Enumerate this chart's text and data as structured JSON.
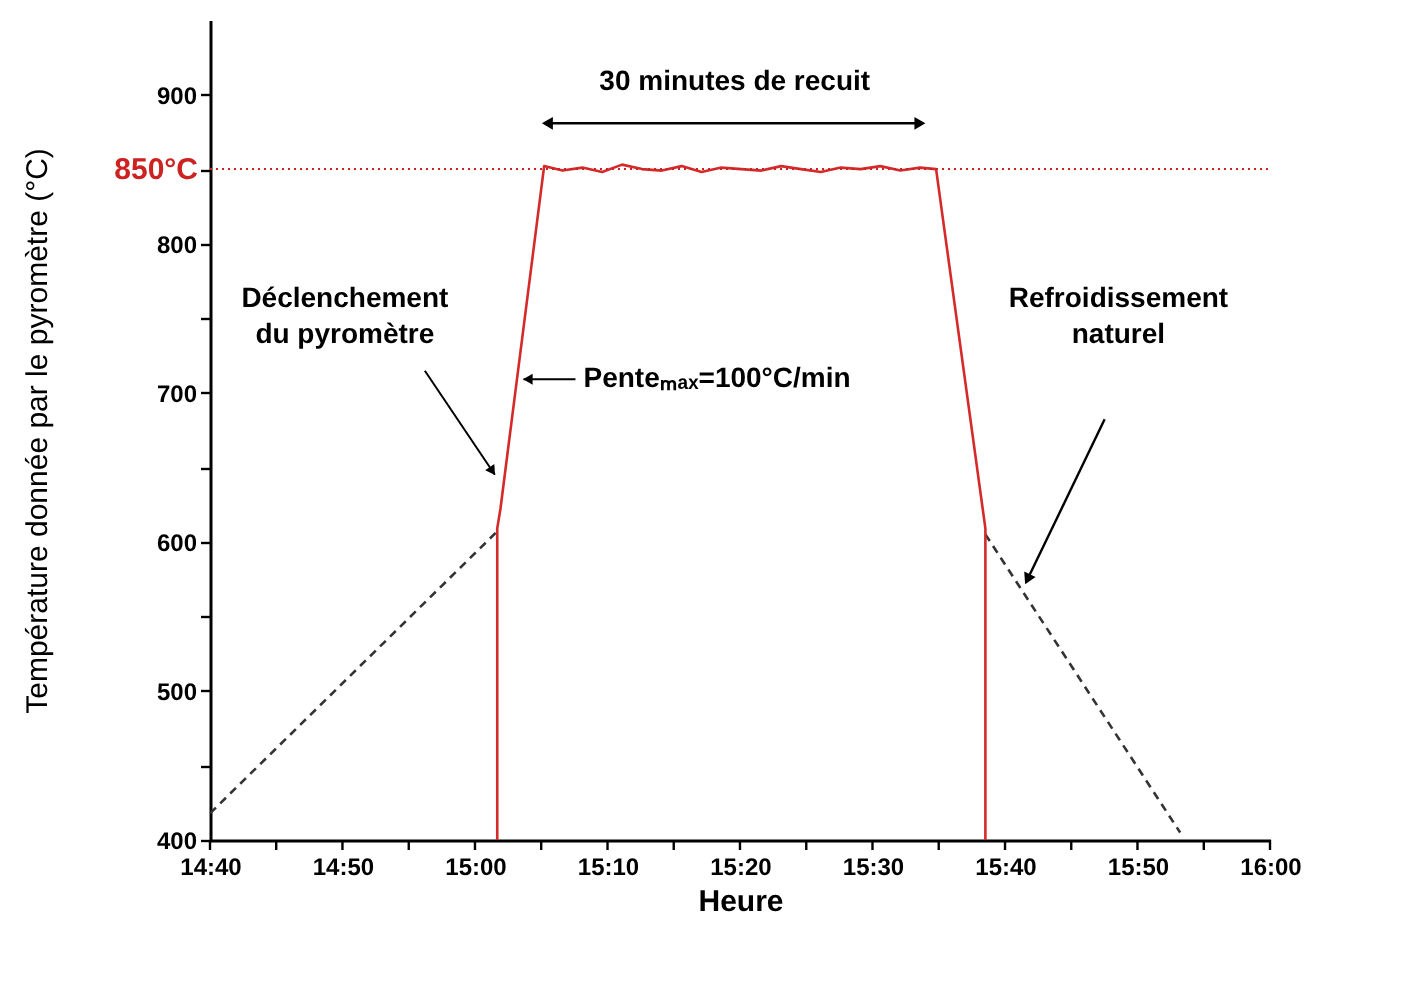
{
  "chart_data": {
    "type": "line",
    "xlabel": "Heure",
    "ylabel": "Température donnée par le pyromètre (°C)",
    "xlim": [
      14.6667,
      16.0
    ],
    "xticks": [
      {
        "value": 14.6667,
        "label": "14:40"
      },
      {
        "value": 14.75,
        "label": null
      },
      {
        "value": 14.8333,
        "label": "14:50"
      },
      {
        "value": 14.9167,
        "label": null
      },
      {
        "value": 15.0,
        "label": "15:00"
      },
      {
        "value": 15.0833,
        "label": null
      },
      {
        "value": 15.1667,
        "label": "15:10"
      },
      {
        "value": 15.25,
        "label": null
      },
      {
        "value": 15.3333,
        "label": "15:20"
      },
      {
        "value": 15.4167,
        "label": null
      },
      {
        "value": 15.5,
        "label": "15:30"
      },
      {
        "value": 15.5833,
        "label": null
      },
      {
        "value": 15.6667,
        "label": "15:40"
      },
      {
        "value": 15.75,
        "label": null
      },
      {
        "value": 15.8333,
        "label": "15:50"
      },
      {
        "value": 15.9167,
        "label": null
      },
      {
        "value": 16.0,
        "label": "16:00"
      }
    ],
    "ylim": [
      400,
      950
    ],
    "yticks": [
      400,
      {
        "value": 450,
        "label": null
      },
      500,
      {
        "value": 550,
        "label": null
      },
      600,
      {
        "value": 650,
        "label": null
      },
      700,
      {
        "value": 750,
        "label": null
      },
      800,
      {
        "value": 850,
        "label": null
      },
      900
    ],
    "grid": false,
    "marker": "none",
    "series": [
      {
        "color": "#333333",
        "line_style": "dashed",
        "x": [
          14.667,
          15.028
        ],
        "values": [
          418,
          607
        ]
      },
      {
        "color": "#333333",
        "line_style": "dashed",
        "x": [
          15.642,
          15.887
        ],
        "values": [
          605,
          405
        ]
      },
      {
        "color": "#d42a2a",
        "line_style": "solid",
        "x": [
          15.028,
          15.028,
          15.032,
          15.087,
          15.11,
          15.135,
          15.16,
          15.185,
          15.21,
          15.235,
          15.26,
          15.285,
          15.31,
          15.335,
          15.36,
          15.385,
          15.41,
          15.435,
          15.46,
          15.485,
          15.51,
          15.535,
          15.56,
          15.58,
          15.642,
          15.642
        ],
        "values": [
          400,
          609,
          622,
          852,
          849,
          851,
          848,
          853,
          850,
          849,
          852,
          848,
          851,
          850,
          849,
          852,
          850,
          848,
          851,
          850,
          852,
          849,
          851,
          850,
          609,
          400
        ]
      }
    ],
    "ref_lines": [
      {
        "axis": "y",
        "value": 850,
        "label": "850°C",
        "color": "#cc2222",
        "line_style": "dotted"
      }
    ],
    "annotations": [
      {
        "text": "Déclenchement du pyromètre",
        "x": 15.025,
        "y": 645
      },
      {
        "text": "Penteₘₐₓ=100°C/min",
        "x": 15.061,
        "y": 709
      },
      "Refroidissement naturel",
      "30 minutes de recuit"
    ]
  }
}
